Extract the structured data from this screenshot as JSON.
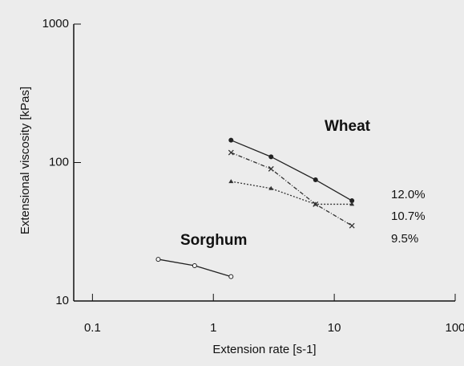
{
  "chart_data": {
    "type": "line",
    "xlabel": "Extension rate  [s-1]",
    "ylabel": "Extensional viscosity  [kPas]",
    "log_x": true,
    "log_y": true,
    "xlim": [
      0.07,
      100
    ],
    "xticks": [
      0.1,
      1,
      10,
      100
    ],
    "ylim": [
      10,
      1000
    ],
    "yticks": [
      10,
      100,
      1000
    ],
    "annotations": [
      "Wheat"
    ],
    "series": [
      {
        "name": "Sorghum",
        "color": "#222222",
        "marker": "open-circle",
        "dash": "solid",
        "x": [
          0.35,
          0.7,
          1.4
        ],
        "values": [
          20,
          18,
          15
        ]
      },
      {
        "name": "12.0%",
        "color": "#222222",
        "marker": "filled-circle",
        "dash": "solid",
        "x": [
          1.4,
          3,
          7,
          14
        ],
        "values": [
          145,
          110,
          75,
          53
        ]
      },
      {
        "name": "10.7%",
        "color": "#333333",
        "marker": "triangle",
        "dash": "dotted",
        "x": [
          1.4,
          3,
          7,
          14
        ],
        "values": [
          73,
          65,
          50,
          50
        ]
      },
      {
        "name": "9.5%",
        "color": "#333333",
        "marker": "cross",
        "dash": "dashdot",
        "x": [
          1.4,
          3,
          7,
          14
        ],
        "values": [
          118,
          90,
          50,
          35
        ]
      }
    ]
  }
}
